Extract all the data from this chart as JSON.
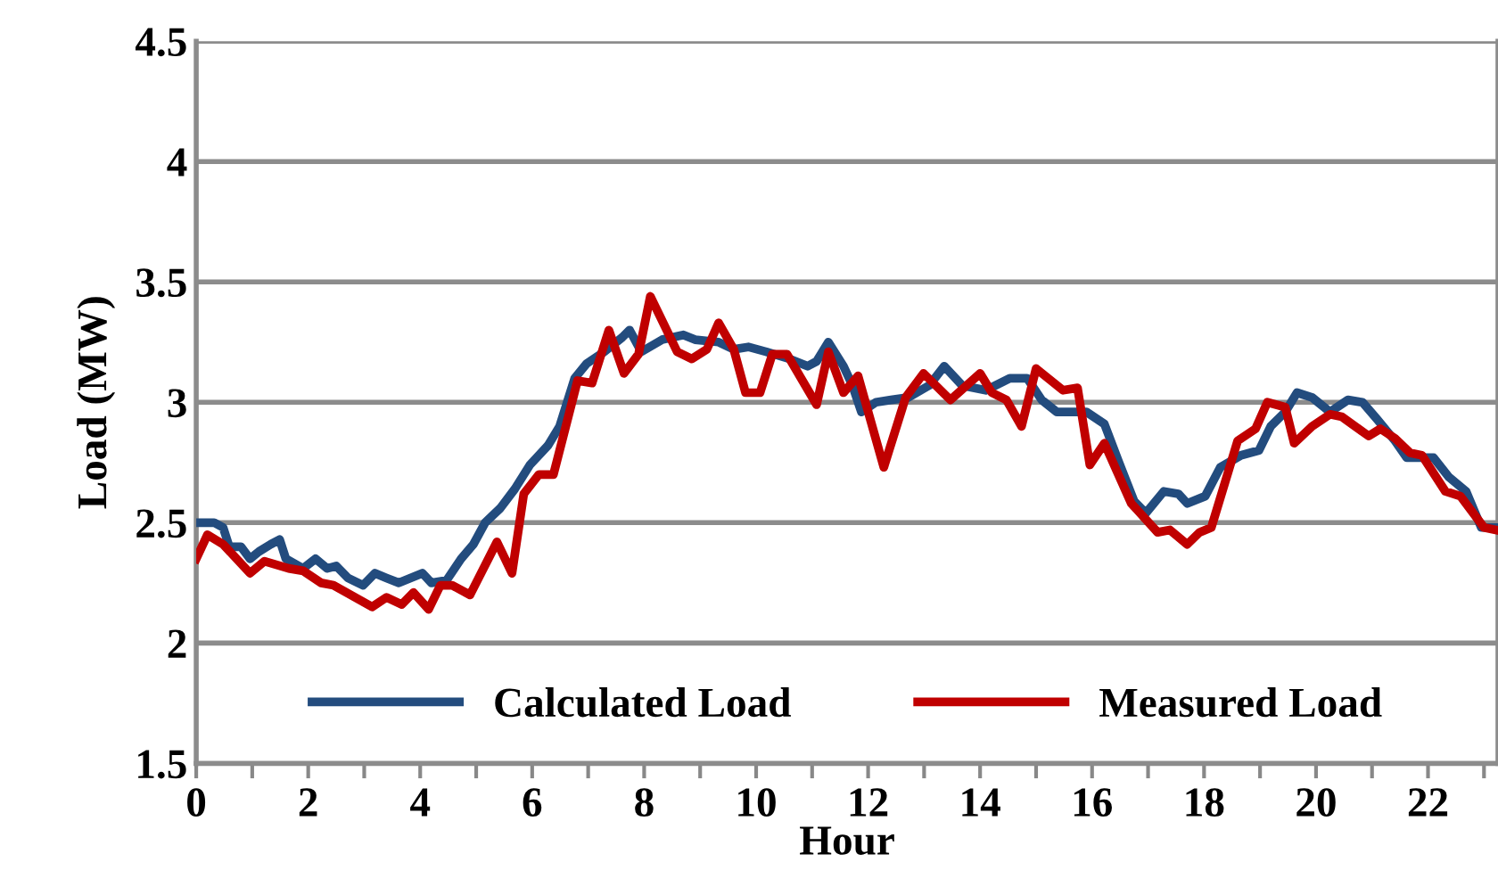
{
  "chart_data": {
    "type": "line",
    "xlabel": "Hour",
    "ylabel": "Load (MW)",
    "xlim": [
      0,
      23.25
    ],
    "ylim": [
      1.5,
      4.5
    ],
    "xticks": [
      0,
      {
        "value": 1,
        "label": null
      },
      2,
      {
        "value": 3,
        "label": null
      },
      4,
      {
        "value": 5,
        "label": null
      },
      6,
      {
        "value": 7,
        "label": null
      },
      8,
      {
        "value": 9,
        "label": null
      },
      10,
      {
        "value": 11,
        "label": null
      },
      12,
      {
        "value": 13,
        "label": null
      },
      14,
      {
        "value": 15,
        "label": null
      },
      16,
      {
        "value": 17,
        "label": null
      },
      18,
      {
        "value": 19,
        "label": null
      },
      20,
      {
        "value": 21,
        "label": null
      },
      22,
      {
        "value": 23,
        "label": null
      }
    ],
    "yticks": [
      1.5,
      2,
      2.5,
      3,
      3.5,
      4,
      4.5
    ],
    "grid": "y",
    "legend": "bottom",
    "marker": "none",
    "line_style": "solid",
    "series": [
      {
        "name": "Calculated Load",
        "color": "#234c7e",
        "x": [
          0,
          0.32,
          0.48,
          0.59,
          0.8,
          0.96,
          1.12,
          1.33,
          1.49,
          1.6,
          1.91,
          2.13,
          2.34,
          2.5,
          2.71,
          2.98,
          3.19,
          3.4,
          3.62,
          4.04,
          4.2,
          4.47,
          4.73,
          4.95,
          5.16,
          5.43,
          5.69,
          5.96,
          6.28,
          6.49,
          6.76,
          6.97,
          7.29,
          7.61,
          7.74,
          7.95,
          8.32,
          8.7,
          8.91,
          9.33,
          9.6,
          9.86,
          10.18,
          10.6,
          10.92,
          11.08,
          11.29,
          11.56,
          11.72,
          11.88,
          12.14,
          12.41,
          12.72,
          13.09,
          13.36,
          13.68,
          14.1,
          14.53,
          14.84,
          15.1,
          15.37,
          15.64,
          15.9,
          16.22,
          16.48,
          16.75,
          16.96,
          17.28,
          17.54,
          17.7,
          18.02,
          18.29,
          18.66,
          18.98,
          19.19,
          19.45,
          19.66,
          19.93,
          20.25,
          20.57,
          20.83,
          21.09,
          21.41,
          21.62,
          22.1,
          22.37,
          22.68,
          22.95,
          23.21
        ],
        "values": [
          2.5,
          2.5,
          2.48,
          2.4,
          2.4,
          2.35,
          2.38,
          2.41,
          2.43,
          2.35,
          2.31,
          2.35,
          2.31,
          2.32,
          2.27,
          2.24,
          2.29,
          2.27,
          2.25,
          2.29,
          2.25,
          2.26,
          2.35,
          2.41,
          2.5,
          2.56,
          2.64,
          2.74,
          2.82,
          2.9,
          3.1,
          3.16,
          3.21,
          3.27,
          3.3,
          3.21,
          3.26,
          3.28,
          3.26,
          3.25,
          3.22,
          3.23,
          3.21,
          3.18,
          3.15,
          3.17,
          3.25,
          3.15,
          3.07,
          2.96,
          3.0,
          3.01,
          3.02,
          3.07,
          3.15,
          3.07,
          3.05,
          3.1,
          3.1,
          3.01,
          2.96,
          2.96,
          2.96,
          2.91,
          2.75,
          2.59,
          2.54,
          2.63,
          2.62,
          2.58,
          2.61,
          2.73,
          2.78,
          2.8,
          2.9,
          2.96,
          3.04,
          3.02,
          2.96,
          3.01,
          3.0,
          2.93,
          2.84,
          2.77,
          2.77,
          2.69,
          2.63,
          2.48,
          2.48
        ]
      },
      {
        "name": "Measured Load",
        "color": "#c00000",
        "x": [
          0,
          0.2,
          0.48,
          0.96,
          1.22,
          1.65,
          1.91,
          2.23,
          2.45,
          3.14,
          3.4,
          3.67,
          3.88,
          4.15,
          4.36,
          4.57,
          4.89,
          5.37,
          5.64,
          5.85,
          6.12,
          6.38,
          6.81,
          7.07,
          7.37,
          7.64,
          7.9,
          8.11,
          8.59,
          8.85,
          9.12,
          9.33,
          9.6,
          9.81,
          10.07,
          10.29,
          10.55,
          11.08,
          11.29,
          11.56,
          11.82,
          12.28,
          12.67,
          12.99,
          13.47,
          14.0,
          14.21,
          14.47,
          14.74,
          15.0,
          15.48,
          15.74,
          15.96,
          16.22,
          16.7,
          17.17,
          17.39,
          17.7,
          17.92,
          18.13,
          18.6,
          18.92,
          19.13,
          19.45,
          19.61,
          19.93,
          20.25,
          20.46,
          20.94,
          21.15,
          21.41,
          21.68,
          21.89,
          22.31,
          22.58,
          23.0,
          23.21
        ],
        "values": [
          2.35,
          2.45,
          2.41,
          2.29,
          2.34,
          2.31,
          2.3,
          2.25,
          2.24,
          2.15,
          2.19,
          2.16,
          2.21,
          2.14,
          2.24,
          2.24,
          2.2,
          2.42,
          2.29,
          2.62,
          2.7,
          2.7,
          3.09,
          3.08,
          3.3,
          3.12,
          3.2,
          3.44,
          3.21,
          3.18,
          3.22,
          3.33,
          3.22,
          3.04,
          3.04,
          3.2,
          3.2,
          2.99,
          3.21,
          3.04,
          3.11,
          2.73,
          3.02,
          3.12,
          3.01,
          3.12,
          3.04,
          3.01,
          2.9,
          3.14,
          3.05,
          3.06,
          2.74,
          2.83,
          2.58,
          2.46,
          2.47,
          2.41,
          2.46,
          2.48,
          2.84,
          2.89,
          3.0,
          2.98,
          2.83,
          2.9,
          2.95,
          2.94,
          2.86,
          2.89,
          2.85,
          2.79,
          2.78,
          2.63,
          2.61,
          2.48,
          2.47
        ]
      }
    ]
  }
}
